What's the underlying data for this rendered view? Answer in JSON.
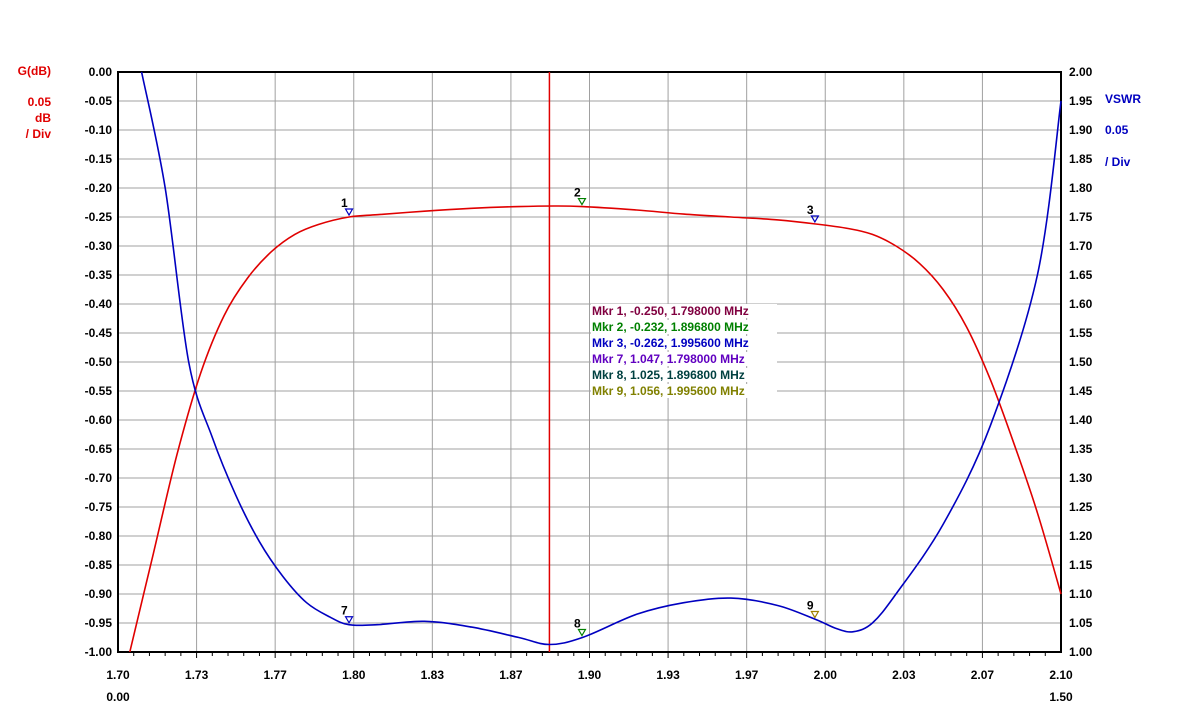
{
  "chart_data": {
    "type": "line",
    "left_axis": {
      "title": "G(dB)",
      "scale_value": "0.05",
      "scale_unit": "dB",
      "scale_div": "/ Div",
      "ylim": [
        -1.0,
        0.0
      ],
      "ticks": [
        "0.00",
        "-0.05",
        "-0.10",
        "-0.15",
        "-0.20",
        "-0.25",
        "-0.30",
        "-0.35",
        "-0.40",
        "-0.45",
        "-0.50",
        "-0.55",
        "-0.60",
        "-0.65",
        "-0.70",
        "-0.75",
        "-0.80",
        "-0.85",
        "-0.90",
        "-0.95",
        "-1.00"
      ],
      "color": "#e00000"
    },
    "right_axis": {
      "title": "VSWR",
      "scale_value": "0.05",
      "scale_div": "/ Div",
      "ylim": [
        1.0,
        2.0
      ],
      "ticks": [
        "2.00",
        "1.95",
        "1.90",
        "1.85",
        "1.80",
        "1.75",
        "1.70",
        "1.65",
        "1.60",
        "1.55",
        "1.50",
        "1.45",
        "1.40",
        "1.35",
        "1.30",
        "1.25",
        "1.20",
        "1.15",
        "1.10",
        "1.05",
        "1.00"
      ],
      "color": "#0000c0"
    },
    "x_axis": {
      "ticks": [
        "1.70",
        "1.73",
        "1.77",
        "1.80",
        "1.83",
        "1.87",
        "1.90",
        "1.93",
        "1.97",
        "2.00",
        "2.03",
        "2.07",
        "2.10"
      ],
      "xlim": [
        1.7,
        2.1
      ],
      "start_label": "0.00",
      "end_label": "1.50"
    },
    "grid": true,
    "cursor_x": 1.883,
    "series": [
      {
        "axis": "left",
        "color": "#e00000",
        "points": [
          [
            1.705,
            -1.0
          ],
          [
            1.715,
            -0.83
          ],
          [
            1.725,
            -0.66
          ],
          [
            1.735,
            -0.52
          ],
          [
            1.745,
            -0.42
          ],
          [
            1.755,
            -0.355
          ],
          [
            1.765,
            -0.31
          ],
          [
            1.775,
            -0.28
          ],
          [
            1.785,
            -0.263
          ],
          [
            1.798,
            -0.25
          ],
          [
            1.81,
            -0.246
          ],
          [
            1.83,
            -0.24
          ],
          [
            1.85,
            -0.235
          ],
          [
            1.87,
            -0.232
          ],
          [
            1.885,
            -0.231
          ],
          [
            1.897,
            -0.232
          ],
          [
            1.92,
            -0.238
          ],
          [
            1.94,
            -0.245
          ],
          [
            1.96,
            -0.25
          ],
          [
            1.98,
            -0.255
          ],
          [
            1.996,
            -0.262
          ],
          [
            2.01,
            -0.27
          ],
          [
            2.02,
            -0.28
          ],
          [
            2.03,
            -0.3
          ],
          [
            2.04,
            -0.33
          ],
          [
            2.05,
            -0.375
          ],
          [
            2.06,
            -0.44
          ],
          [
            2.07,
            -0.53
          ],
          [
            2.08,
            -0.64
          ],
          [
            2.09,
            -0.76
          ],
          [
            2.1,
            -0.9
          ]
        ]
      },
      {
        "axis": "right",
        "color": "#0000c0",
        "points": [
          [
            1.71,
            2.0
          ],
          [
            1.72,
            1.8
          ],
          [
            1.73,
            1.5
          ],
          [
            1.74,
            1.37
          ],
          [
            1.75,
            1.27
          ],
          [
            1.76,
            1.19
          ],
          [
            1.77,
            1.13
          ],
          [
            1.78,
            1.085
          ],
          [
            1.79,
            1.06
          ],
          [
            1.798,
            1.047
          ],
          [
            1.81,
            1.047
          ],
          [
            1.83,
            1.053
          ],
          [
            1.85,
            1.043
          ],
          [
            1.87,
            1.025
          ],
          [
            1.883,
            1.013
          ],
          [
            1.897,
            1.025
          ],
          [
            1.92,
            1.065
          ],
          [
            1.94,
            1.085
          ],
          [
            1.96,
            1.093
          ],
          [
            1.98,
            1.08
          ],
          [
            1.996,
            1.056
          ],
          [
            2.005,
            1.04
          ],
          [
            2.012,
            1.035
          ],
          [
            2.02,
            1.05
          ],
          [
            2.03,
            1.1
          ],
          [
            2.05,
            1.22
          ],
          [
            2.07,
            1.39
          ],
          [
            2.09,
            1.65
          ],
          [
            2.1,
            1.95
          ]
        ]
      }
    ],
    "markers": [
      {
        "id": "1",
        "series": 0,
        "x": 1.798,
        "y": -0.25,
        "color": "#0000c0"
      },
      {
        "id": "2",
        "series": 0,
        "x": 1.8968,
        "y": -0.232,
        "color": "#008000"
      },
      {
        "id": "3",
        "series": 0,
        "x": 1.9956,
        "y": -0.262,
        "color": "#0000c0"
      },
      {
        "id": "7",
        "series": 1,
        "x": 1.798,
        "y": 1.047,
        "color": "#0000c0"
      },
      {
        "id": "8",
        "series": 1,
        "x": 1.8968,
        "y": 1.025,
        "color": "#008000"
      },
      {
        "id": "9",
        "series": 1,
        "x": 1.9956,
        "y": 1.056,
        "color": "#a08000"
      }
    ],
    "marker_readouts": [
      {
        "text": "Mkr 1, -0.250, 1.798000 MHz",
        "color": "#800040"
      },
      {
        "text": "Mkr 2, -0.232, 1.896800 MHz",
        "color": "#008000"
      },
      {
        "text": "Mkr 3, -0.262, 1.995600 MHz",
        "color": "#0000c0"
      },
      {
        "text": "Mkr 7, 1.047, 1.798000 MHz",
        "color": "#6000c0"
      },
      {
        "text": "Mkr 8, 1.025, 1.896800 MHz",
        "color": "#004040"
      },
      {
        "text": "Mkr 9, 1.056, 1.995600 MHz",
        "color": "#808000"
      }
    ]
  }
}
